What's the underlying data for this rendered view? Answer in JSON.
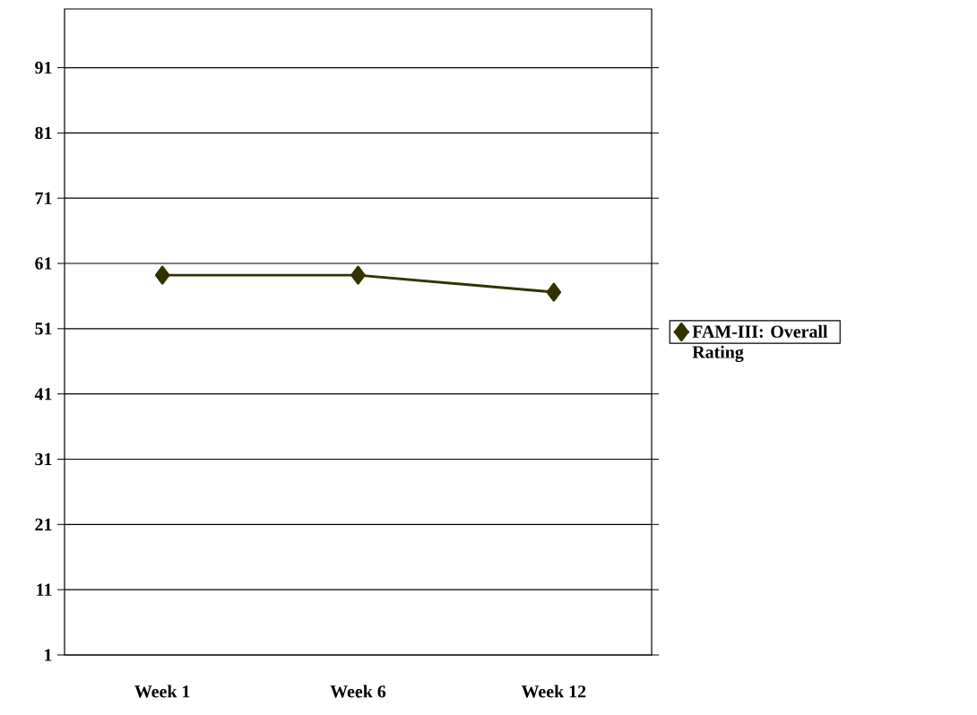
{
  "chart_data": {
    "type": "line",
    "categories": [
      "Week 1",
      "Week 6",
      "Week 12"
    ],
    "series": [
      {
        "name": "FAM-III: Overall Rating",
        "color": "#333300",
        "values": [
          59.2,
          59.2,
          56.6
        ]
      }
    ],
    "ylim": [
      1,
      100
    ],
    "yticks": [
      1,
      11,
      21,
      31,
      41,
      51,
      61,
      71,
      81,
      91
    ],
    "grid": "y",
    "legend": "right",
    "marker": "diamond",
    "line_style": "solid"
  }
}
